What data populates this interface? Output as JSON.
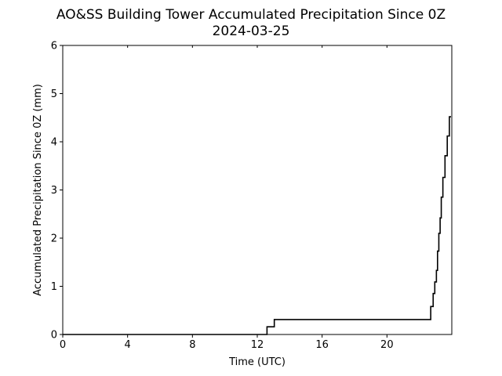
{
  "chart_data": {
    "type": "line",
    "title": "AO&SS Building Tower Accumulated Precipitation Since 0Z",
    "subtitle": "2024-03-25",
    "xlabel": "Time (UTC)",
    "ylabel": "Accumulated Precipitation Since 0Z (mm)",
    "xlim": [
      0,
      24
    ],
    "ylim": [
      0,
      6
    ],
    "xticks": [
      0,
      4,
      8,
      12,
      16,
      20
    ],
    "yticks": [
      0,
      1,
      2,
      3,
      4,
      5,
      6
    ],
    "grid": false,
    "colors": {
      "line": "#000000",
      "axes": "#000000",
      "background": "#ffffff"
    },
    "series": [
      {
        "x": [
          0,
          12.6,
          12.6,
          13.05,
          13.05,
          22.7,
          22.7,
          22.85,
          22.85,
          22.95,
          22.95,
          23.05,
          23.05,
          23.12,
          23.12,
          23.2,
          23.2,
          23.28,
          23.28,
          23.35,
          23.35,
          23.45,
          23.45,
          23.58,
          23.58,
          23.72,
          23.72,
          23.85,
          23.85,
          23.95
        ],
        "y": [
          0,
          0,
          0.16,
          0.16,
          0.31,
          0.31,
          0.58,
          0.58,
          0.85,
          0.85,
          1.09,
          1.09,
          1.33,
          1.33,
          1.73,
          1.73,
          2.1,
          2.1,
          2.42,
          2.42,
          2.85,
          2.85,
          3.26,
          3.26,
          3.71,
          3.71,
          4.12,
          4.12,
          4.52,
          4.52
        ]
      }
    ]
  }
}
